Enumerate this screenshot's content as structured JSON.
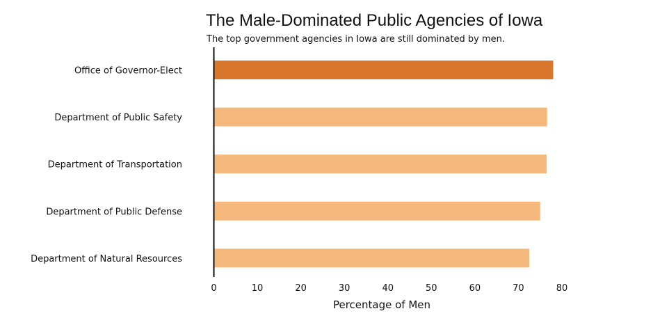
{
  "chart_data": {
    "type": "bar",
    "orientation": "horizontal",
    "title": "The Male-Dominated Public Agencies of Iowa",
    "subtitle": "The top government agencies in Iowa are still dominated by men.",
    "xlabel": "Percentage of Men",
    "ylabel": "",
    "xlim": [
      0,
      80
    ],
    "xticks": [
      0,
      10,
      20,
      30,
      40,
      50,
      60,
      70,
      80
    ],
    "grid": false,
    "categories": [
      "Office of Governor-Elect",
      "Department of Public Safety",
      "Department of Transportation",
      "Department of Public Defense",
      "Department of Natural Resources"
    ],
    "values": [
      78,
      76.6,
      76.5,
      75,
      72.5
    ],
    "colors": [
      "#d9782d",
      "#f5b97d",
      "#f5b97d",
      "#f5b97d",
      "#f5b97d"
    ]
  }
}
